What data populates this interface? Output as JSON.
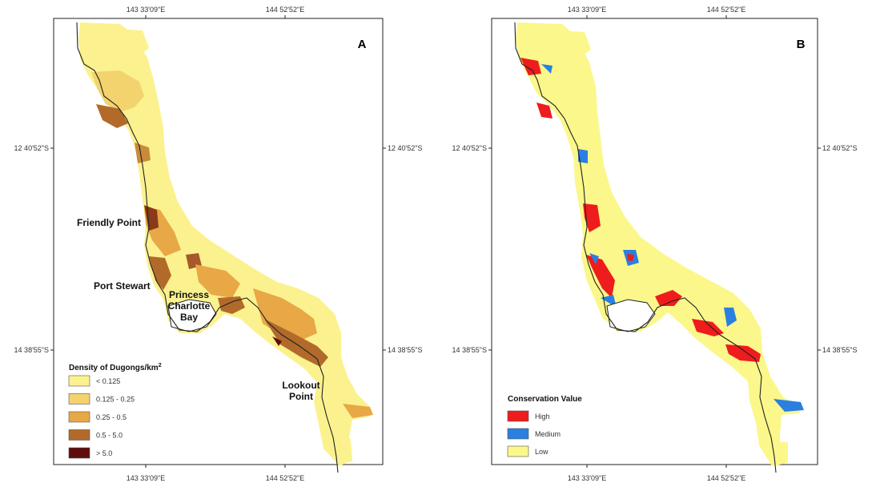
{
  "panel_a": {
    "letter": "A",
    "top_ticks": [
      "143 33'09\"E",
      "144 52'52\"E"
    ],
    "bottom_ticks": [
      "143 33'09\"E",
      "144 52'52\"E"
    ],
    "left_ticks": [
      "12 40'52\"S",
      "14 38'55\"S"
    ],
    "right_ticks": [
      "12 40'52\"S",
      "14 38'55\"S"
    ],
    "places": {
      "friendly_point": "Friendly Point",
      "port_stewart": "Port Stewart",
      "princess_line1": "Princess",
      "princess_line2": "Charlotte",
      "princess_line3": "Bay",
      "lookout_line1": "Lookout",
      "lookout_line2": "Point"
    },
    "legend": {
      "title": "Density of Dugongs/km",
      "title_sup": "2",
      "items": [
        {
          "label": "< 0.125",
          "color": "#fbf28f"
        },
        {
          "label": "0.125 - 0.25",
          "color": "#f2d36d"
        },
        {
          "label": "0.25 - 0.5",
          "color": "#e8a845"
        },
        {
          "label": "0.5 - 5.0",
          "color": "#b26a2b"
        },
        {
          "label": "> 5.0",
          "color": "#5e0d0d"
        }
      ]
    }
  },
  "panel_b": {
    "letter": "B",
    "top_ticks": [
      "143 33'09\"E",
      "144 52'52\"E"
    ],
    "bottom_ticks": [
      "143 33'09\"E",
      "144 52'52\"E"
    ],
    "left_ticks": [
      "12 40'52\"S",
      "14 38'55\"S"
    ],
    "right_ticks": [
      "12 40'52\"S",
      "14 38'55\"S"
    ],
    "legend": {
      "title": "Conservation Value",
      "items": [
        {
          "label": "High",
          "color": "#ee1c1c"
        },
        {
          "label": "Medium",
          "color": "#2a7fe0"
        },
        {
          "label": "Low",
          "color": "#fbf78a"
        }
      ]
    }
  }
}
